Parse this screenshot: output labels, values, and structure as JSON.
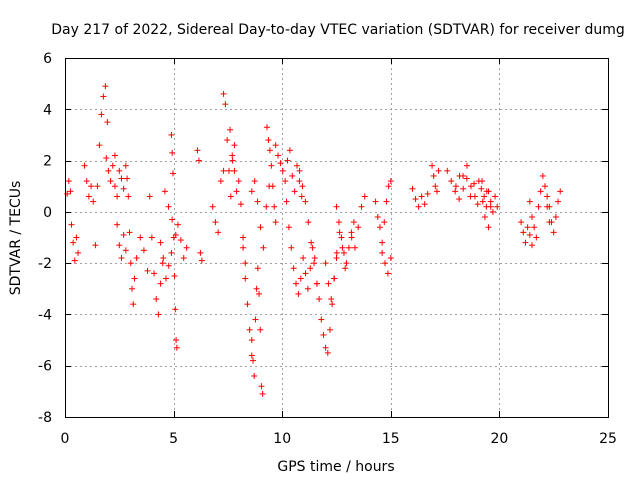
{
  "chart_data": {
    "type": "scatter",
    "title": "Day 217 of 2022, Sidereal Day-to-day VTEC variation (SDTVAR) for receiver dumg",
    "xlabel": "GPS time / hours",
    "ylabel": "SDTVAR / TECUs",
    "xlim": [
      0,
      25
    ],
    "ylim": [
      -8,
      6
    ],
    "xticks": [
      "0",
      "5",
      "10",
      "15",
      "20",
      "25"
    ],
    "yticks": [
      "-8",
      "-6",
      "-4",
      "-2",
      "0",
      "2",
      "4",
      "6"
    ],
    "grid": true,
    "marker": "plus",
    "color": "#ff0000",
    "series": [
      {
        "name": "SDTVAR",
        "segments": [
          {
            "x0": 0.1,
            "x1": 0.25,
            "y": [
              0.7,
              1.2,
              0.8
            ]
          },
          {
            "x0": 0.3,
            "x1": 0.6,
            "y": [
              -0.5,
              -1.2,
              -1.9,
              -1.0,
              -1.6
            ]
          },
          {
            "x0": 0.9,
            "x1": 1.3,
            "y": [
              1.8,
              1.2,
              0.6,
              1.0,
              0.4
            ]
          },
          {
            "x0": 1.4,
            "x1": 1.95,
            "y": [
              -1.3,
              1.0,
              2.6,
              3.8,
              4.5,
              4.9,
              3.5
            ]
          },
          {
            "x0": 1.9,
            "x1": 2.3,
            "y": [
              2.1,
              1.6,
              1.2,
              1.8,
              2.2
            ]
          },
          {
            "x0": 2.3,
            "x1": 2.7,
            "y": [
              1.0,
              0.6,
              1.6,
              1.3,
              0.9
            ]
          },
          {
            "x0": 2.4,
            "x1": 2.8,
            "y": [
              -0.5,
              -1.3,
              -1.8,
              -0.9,
              -1.5
            ]
          },
          {
            "x0": 2.8,
            "x1": 3.2,
            "y": [
              1.8,
              1.3,
              0.6,
              -0.8,
              -2.0,
              -3.0,
              -3.6,
              -2.6
            ]
          },
          {
            "x0": 3.3,
            "x1": 3.8,
            "y": [
              -1.8,
              -1.0,
              -1.5,
              -2.3
            ]
          },
          {
            "x0": 3.9,
            "x1": 4.5,
            "y": [
              0.6,
              -1.0,
              -2.4,
              -3.4,
              -4.0,
              -2.8,
              -2.0
            ]
          },
          {
            "x0": 4.4,
            "x1": 4.9,
            "y": [
              -1.2,
              -1.8,
              -2.6,
              -2.1,
              -1.6
            ]
          },
          {
            "x0": 4.6,
            "x1": 5.1,
            "y": [
              0.8,
              0.2,
              -0.3,
              -0.9
            ]
          },
          {
            "x0": 4.9,
            "x1": 5.15,
            "y": [
              3.0,
              2.3,
              1.5,
              -1.0,
              -2.5,
              -3.8,
              -5.0,
              -5.3
            ]
          },
          {
            "x0": 5.2,
            "x1": 5.6,
            "y": [
              -0.5,
              -1.1,
              -1.8,
              -1.4
            ]
          },
          {
            "x0": 6.1,
            "x1": 6.3,
            "y": [
              2.4,
              2.0,
              -1.6,
              -1.9
            ]
          },
          {
            "x0": 6.8,
            "x1": 7.3,
            "y": [
              0.2,
              -0.4,
              -0.8,
              1.2,
              1.6
            ]
          },
          {
            "x0": 7.3,
            "x1": 7.8,
            "y": [
              4.6,
              4.2,
              2.8,
              1.6,
              0.6,
              2.0,
              2.6
            ]
          },
          {
            "x0": 7.6,
            "x1": 8.3,
            "y": [
              3.2,
              2.2,
              1.6,
              0.8,
              1.2,
              0.3,
              -1.0,
              -2.0
            ]
          },
          {
            "x0": 8.2,
            "x1": 8.6,
            "y": [
              -1.4,
              -2.6,
              -3.6,
              -4.6,
              -5.6
            ]
          },
          {
            "x0": 8.6,
            "x1": 9.1,
            "y": [
              -5.0,
              -5.8,
              -6.4,
              -4.2,
              -3.0,
              -2.2,
              -3.2,
              -4.6,
              -6.8,
              -7.1
            ]
          },
          {
            "x0": 8.6,
            "x1": 9.4,
            "y": [
              0.8,
              1.2,
              0.4,
              -0.6,
              -1.4,
              0.2,
              1.0
            ]
          },
          {
            "x0": 9.3,
            "x1": 9.7,
            "y": [
              3.3,
              2.8,
              2.4,
              1.8,
              1.0,
              0.2,
              -0.4
            ]
          },
          {
            "x0": 9.7,
            "x1": 10.9,
            "y": [
              2.6,
              2.2,
              1.9,
              1.6,
              1.2,
              2.0,
              2.4,
              1.4,
              0.8,
              1.8,
              1.2,
              0.6
            ]
          },
          {
            "x0": 10.2,
            "x1": 11.4,
            "y": [
              0.4,
              -0.6,
              -1.4,
              -2.2,
              -2.8,
              -3.2,
              -2.6,
              -1.8,
              -2.4,
              -3.0,
              -2.2,
              -1.4
            ]
          },
          {
            "x0": 10.8,
            "x1": 11.6,
            "y": [
              1.6,
              1.0,
              0.4,
              -0.4,
              -1.2,
              -2.0,
              -2.8
            ]
          },
          {
            "x0": 11.5,
            "x1": 12.5,
            "y": [
              -1.8,
              -2.8,
              -3.4,
              -4.2,
              -4.8,
              -5.3,
              -5.5,
              -4.6,
              -3.6,
              -2.6,
              -1.8
            ]
          },
          {
            "x0": 12.0,
            "x1": 12.9,
            "y": [
              -2.0,
              -2.8,
              -3.4,
              -2.6,
              -1.6,
              -0.8,
              -1.4,
              -2.2
            ]
          },
          {
            "x0": 12.5,
            "x1": 13.3,
            "y": [
              0.2,
              -0.4,
              -1.0,
              -1.6,
              -2.0,
              -1.4,
              -0.8,
              -0.4
            ]
          },
          {
            "x0": 13.2,
            "x1": 13.8,
            "y": [
              -1.0,
              -1.4,
              -0.6,
              0.2,
              0.6
            ]
          },
          {
            "x0": 14.3,
            "x1": 15.0,
            "y": [
              0.4,
              -0.2,
              -0.6,
              -1.2,
              -0.4,
              0.4,
              1.0,
              1.2
            ]
          },
          {
            "x0": 14.6,
            "x1": 15.0,
            "y": [
              -1.6,
              -2.0,
              -2.4,
              -1.8
            ]
          },
          {
            "x0": 16.0,
            "x1": 16.7,
            "y": [
              0.9,
              0.5,
              0.2,
              0.6,
              0.3,
              0.7
            ]
          },
          {
            "x0": 16.9,
            "x1": 17.2,
            "y": [
              1.8,
              1.4,
              1.0,
              0.8,
              1.6
            ]
          },
          {
            "x0": 17.6,
            "x1": 19.6,
            "y": [
              1.6,
              1.2,
              0.8,
              0.5,
              1.4,
              1.8,
              1.0,
              0.6,
              1.2,
              0.4,
              0.8,
              0.2
            ]
          },
          {
            "x0": 18.0,
            "x1": 19.5,
            "y": [
              1.0,
              1.4,
              0.9,
              1.3,
              0.6,
              1.1,
              0.3,
              0.9,
              -0.2,
              -0.6
            ]
          },
          {
            "x0": 19.2,
            "x1": 19.9,
            "y": [
              1.2,
              0.6,
              0.2,
              0.8,
              0.4,
              0.0,
              0.6,
              0.2
            ]
          },
          {
            "x0": 21.0,
            "x1": 21.5,
            "y": [
              -0.4,
              -0.8,
              -1.2,
              -0.6,
              -0.9,
              -1.3
            ]
          },
          {
            "x0": 21.4,
            "x1": 22.3,
            "y": [
              0.4,
              -0.2,
              -0.6,
              -1.0,
              0.2,
              0.8,
              1.4,
              1.0,
              0.2,
              -0.4
            ]
          },
          {
            "x0": 22.2,
            "x1": 22.8,
            "y": [
              0.6,
              0.2,
              -0.4,
              -0.8,
              -0.2,
              0.4,
              0.8
            ]
          }
        ]
      }
    ]
  }
}
